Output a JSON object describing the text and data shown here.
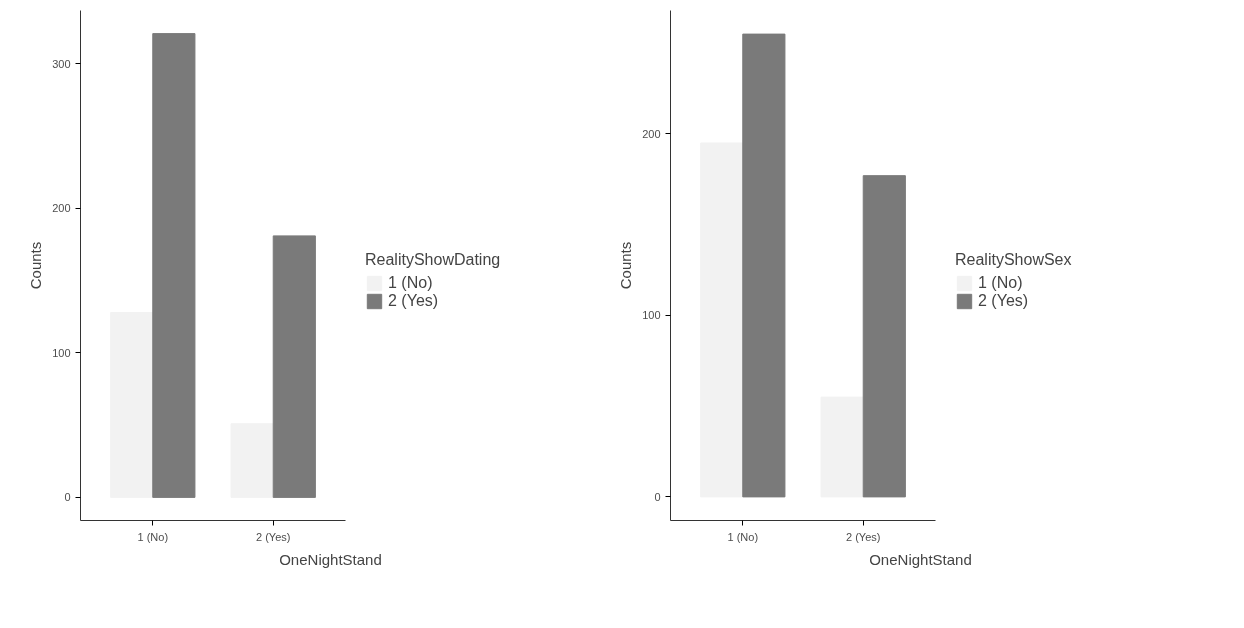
{
  "chart_data": [
    {
      "type": "bar",
      "categories": [
        "1 (No)",
        "2 (Yes)"
      ],
      "xlabel": "OneNightStand",
      "ylabel": "Counts",
      "legend_title": "RealityShowDating",
      "legend": "right",
      "ylim": [
        -16,
        337
      ],
      "yticks": [
        0,
        100,
        200,
        300
      ],
      "series": [
        {
          "name": "1 (No)",
          "color": "#f2f2f2",
          "values": [
            128,
            51
          ]
        },
        {
          "name": "2 (Yes)",
          "color": "#7a7a7a",
          "values": [
            321,
            181
          ]
        }
      ]
    },
    {
      "type": "bar",
      "categories": [
        "1 (No)",
        "2 (Yes)"
      ],
      "xlabel": "OneNightStand",
      "ylabel": "Counts",
      "legend_title": "RealityShowSex",
      "legend": "right",
      "ylim": [
        -13,
        268
      ],
      "yticks": [
        0,
        100,
        200
      ],
      "series": [
        {
          "name": "1 (No)",
          "color": "#f2f2f2",
          "values": [
            195,
            55
          ]
        },
        {
          "name": "2 (Yes)",
          "color": "#7a7a7a",
          "values": [
            255,
            177
          ]
        }
      ]
    }
  ]
}
